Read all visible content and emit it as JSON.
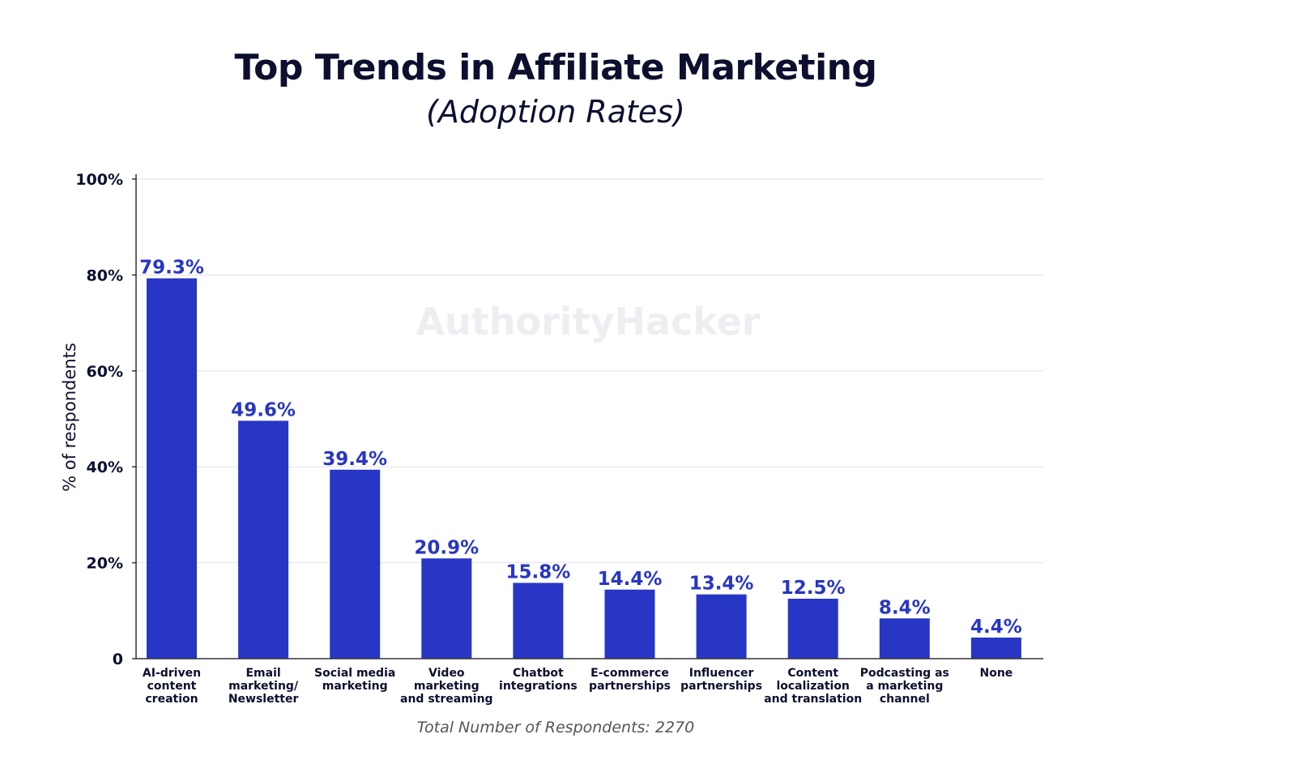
{
  "chart_data": {
    "type": "bar",
    "title": "Top Trends in Affiliate Marketing",
    "subtitle": "(Adoption Rates)",
    "ylabel": "% of respondents",
    "xlabel": "",
    "ylim": [
      0,
      100
    ],
    "yticks": [
      "0",
      "20%",
      "40%",
      "60%",
      "80%",
      "100%"
    ],
    "grid": true,
    "categories": [
      [
        "AI-driven",
        "content",
        "creation"
      ],
      [
        "Email",
        "marketing/",
        "Newsletter"
      ],
      [
        "Social media",
        "marketing"
      ],
      [
        "Video",
        "marketing",
        "and streaming"
      ],
      [
        "Chatbot",
        "integrations"
      ],
      [
        "E-commerce",
        "partnerships"
      ],
      [
        "Influencer",
        "partnerships"
      ],
      [
        "Content",
        "localization",
        "and translation"
      ],
      [
        "Podcasting as",
        "a marketing",
        "channel"
      ],
      [
        "None"
      ]
    ],
    "values": [
      79.3,
      49.6,
      39.4,
      20.9,
      15.8,
      14.4,
      13.4,
      12.5,
      8.4,
      4.4
    ],
    "data_labels": [
      "79.3%",
      "49.6%",
      "39.4%",
      "20.9%",
      "15.8%",
      "14.4%",
      "13.4%",
      "12.5%",
      "8.4%",
      "4.4%"
    ],
    "bar_color": "#2736c4",
    "watermark": "AuthorityHacker",
    "footnote": "Total Number of Respondents: 2270"
  }
}
